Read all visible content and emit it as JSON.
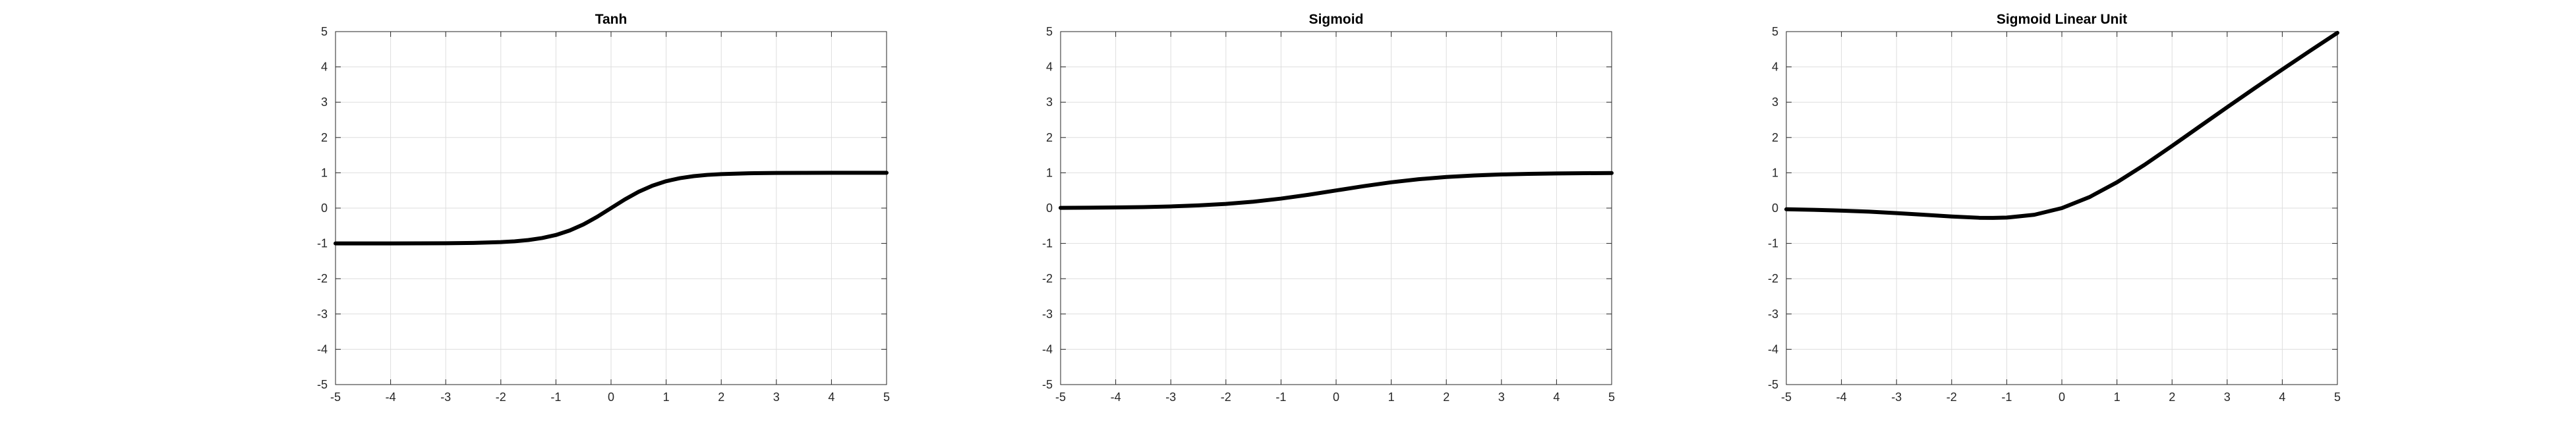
{
  "chart_data": [
    {
      "type": "line",
      "title": "Tanh",
      "xlabel": "",
      "ylabel": "",
      "xlim": [
        -5,
        5
      ],
      "ylim": [
        -5,
        5
      ],
      "xticks": [
        -5,
        -4,
        -3,
        -2,
        -1,
        0,
        1,
        2,
        3,
        4,
        5
      ],
      "yticks": [
        -5,
        -4,
        -3,
        -2,
        -1,
        0,
        1,
        2,
        3,
        4,
        5
      ],
      "grid": true,
      "series": [
        {
          "color": "#000000",
          "x": [
            -5,
            -4.5,
            -4,
            -3.5,
            -3,
            -2.5,
            -2,
            -1.75,
            -1.5,
            -1.25,
            -1,
            -0.75,
            -0.5,
            -0.25,
            0,
            0.25,
            0.5,
            0.75,
            1,
            1.25,
            1.5,
            1.75,
            2,
            2.5,
            3,
            3.5,
            4,
            4.5,
            5
          ],
          "y": [
            -1.0,
            -1.0,
            -1.0,
            -0.998,
            -0.995,
            -0.987,
            -0.964,
            -0.941,
            -0.905,
            -0.848,
            -0.762,
            -0.635,
            -0.462,
            -0.245,
            0.0,
            0.245,
            0.462,
            0.635,
            0.762,
            0.848,
            0.905,
            0.941,
            0.964,
            0.987,
            0.995,
            0.998,
            1.0,
            1.0,
            1.0
          ]
        }
      ]
    },
    {
      "type": "line",
      "title": "Sigmoid",
      "xlabel": "",
      "ylabel": "",
      "xlim": [
        -5,
        5
      ],
      "ylim": [
        -5,
        5
      ],
      "xticks": [
        -5,
        -4,
        -3,
        -2,
        -1,
        0,
        1,
        2,
        3,
        4,
        5
      ],
      "yticks": [
        -5,
        -4,
        -3,
        -2,
        -1,
        0,
        1,
        2,
        3,
        4,
        5
      ],
      "grid": true,
      "series": [
        {
          "color": "#000000",
          "x": [
            -5,
            -4.5,
            -4,
            -3.5,
            -3,
            -2.5,
            -2,
            -1.5,
            -1,
            -0.5,
            0,
            0.5,
            1,
            1.5,
            2,
            2.5,
            3,
            3.5,
            4,
            4.5,
            5
          ],
          "y": [
            0.007,
            0.011,
            0.018,
            0.029,
            0.047,
            0.076,
            0.119,
            0.182,
            0.269,
            0.378,
            0.5,
            0.622,
            0.731,
            0.818,
            0.881,
            0.924,
            0.953,
            0.971,
            0.982,
            0.989,
            0.993
          ]
        }
      ]
    },
    {
      "type": "line",
      "title": "Sigmoid Linear Unit",
      "xlabel": "",
      "ylabel": "",
      "xlim": [
        -5,
        5
      ],
      "ylim": [
        -5,
        5
      ],
      "xticks": [
        -5,
        -4,
        -3,
        -2,
        -1,
        0,
        1,
        2,
        3,
        4,
        5
      ],
      "yticks": [
        -5,
        -4,
        -3,
        -2,
        -1,
        0,
        1,
        2,
        3,
        4,
        5
      ],
      "grid": true,
      "series": [
        {
          "color": "#000000",
          "x": [
            -5,
            -4.5,
            -4,
            -3.5,
            -3,
            -2.5,
            -2,
            -1.5,
            -1.25,
            -1,
            -0.5,
            0,
            0.5,
            1,
            1.5,
            2,
            2.5,
            3,
            3.5,
            4,
            4.5,
            5
          ],
          "y": [
            -0.033,
            -0.049,
            -0.072,
            -0.101,
            -0.142,
            -0.189,
            -0.238,
            -0.274,
            -0.278,
            -0.269,
            -0.189,
            0.0,
            0.311,
            0.731,
            1.226,
            1.762,
            2.311,
            2.858,
            3.398,
            3.928,
            4.451,
            4.966
          ]
        }
      ]
    }
  ]
}
